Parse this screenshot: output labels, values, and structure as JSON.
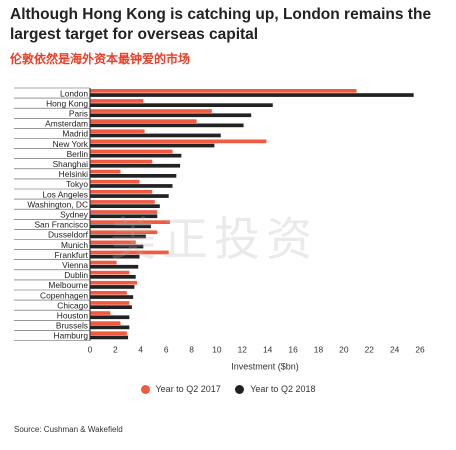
{
  "header": {
    "title": "Although Hong Kong is catching up, London remains the largest target for overseas capital",
    "subtitle": "伦敦依然是海外资本最钟爱的市场"
  },
  "watermark_text": "美正投资",
  "source": "Source: Cushman & Wakefield",
  "colors": {
    "series_2017": "#f15a40",
    "series_2018": "#222222"
  },
  "chart_data": {
    "type": "bar",
    "orientation": "horizontal",
    "title": "",
    "xlabel": "Investment ($bn)",
    "ylabel": "",
    "xlim": [
      0,
      26
    ],
    "xticks": [
      0,
      2,
      4,
      6,
      8,
      10,
      12,
      14,
      16,
      18,
      20,
      22,
      24,
      26
    ],
    "grid": false,
    "legend_position": "bottom",
    "categories": [
      "London",
      "Hong Kong",
      "Paris",
      "Amsterdam",
      "Madrid",
      "New York",
      "Berlin",
      "Shanghai",
      "Helsinki",
      "Tokyo",
      "Los Angeles",
      "Washington, DC",
      "Sydney",
      "San Francisco",
      "Dusseldorf",
      "Munich",
      "Frankfurt",
      "Vienna",
      "Dublin",
      "Melbourne",
      "Copenhagen",
      "Chicago",
      "Houston",
      "Brussels",
      "Hamburg"
    ],
    "series": [
      {
        "name": "Year to Q2 2017",
        "values": [
          21,
          4.2,
          9.6,
          8.4,
          4.3,
          13.9,
          6.5,
          4.9,
          2.4,
          3.9,
          4.9,
          5.1,
          5.3,
          6.3,
          5.3,
          3.6,
          6.2,
          2.1,
          3.1,
          3.7,
          2.9,
          3.1,
          1.6,
          2.4,
          2.9
        ]
      },
      {
        "name": "Year to Q2 2018",
        "values": [
          25.5,
          14.4,
          12.7,
          12.1,
          10.3,
          9.8,
          7.2,
          7.1,
          6.8,
          6.5,
          6.2,
          5.5,
          5.3,
          4.8,
          4.4,
          4.2,
          3.9,
          3.8,
          3.6,
          3.5,
          3.4,
          3.3,
          3.1,
          3.1,
          3.0
        ]
      }
    ]
  }
}
